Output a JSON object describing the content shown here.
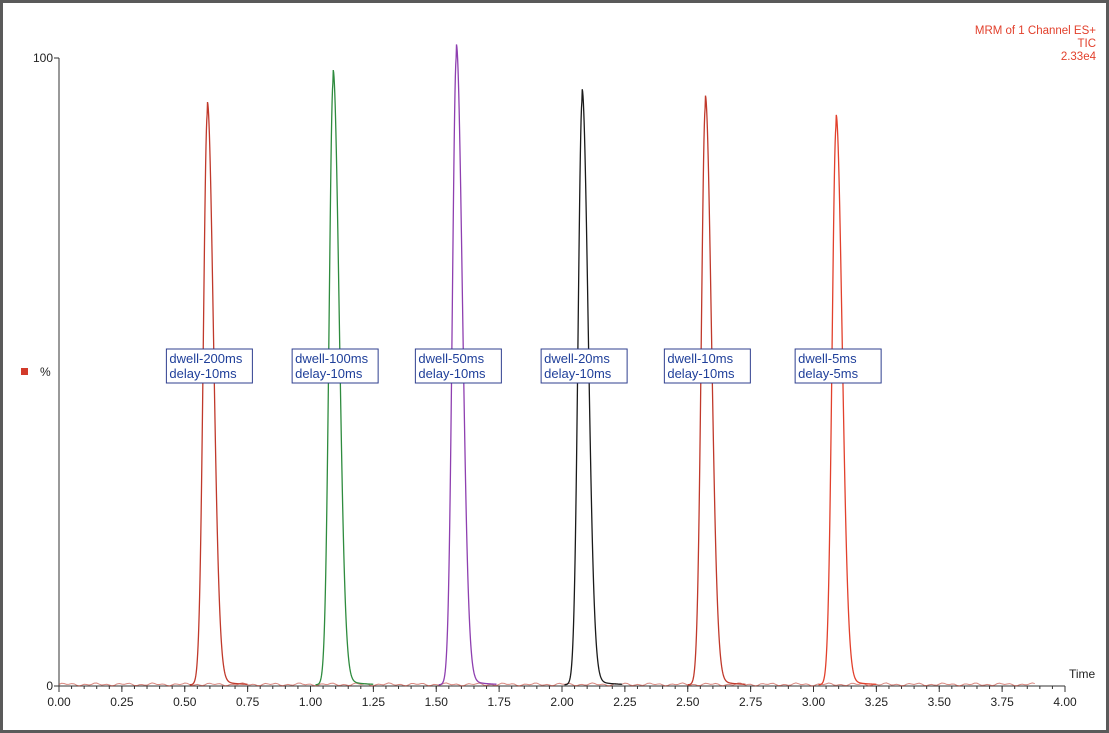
{
  "info": {
    "line1": "MRM of 1 Channel ES+",
    "line2": "TIC",
    "line3": "2.33e4"
  },
  "chart_data": {
    "type": "line",
    "title": "",
    "xlabel": "Time",
    "ylabel": "%",
    "xlim": [
      0.0,
      4.0
    ],
    "ylim": [
      0,
      100
    ],
    "x_ticks": [
      "0.00",
      "0.25",
      "0.50",
      "0.75",
      "1.00",
      "1.25",
      "1.50",
      "1.75",
      "2.00",
      "2.25",
      "2.50",
      "2.75",
      "3.00",
      "3.25",
      "3.50",
      "3.75",
      "4.00"
    ],
    "y_ticks": [
      "0",
      "100"
    ],
    "grid": false,
    "series": [
      {
        "color": "#c0392b",
        "peak_time": 0.59,
        "peak_intensity": 91,
        "label": [
          "dwell-200ms",
          "delay-10ms"
        ]
      },
      {
        "color": "#2e8b3e",
        "peak_time": 1.09,
        "peak_intensity": 96,
        "label": [
          "dwell-100ms",
          "delay-10ms"
        ]
      },
      {
        "color": "#8e3fb0",
        "peak_time": 1.58,
        "peak_intensity": 100,
        "label": [
          "dwell-50ms",
          "delay-10ms"
        ]
      },
      {
        "color": "#1a1a1a",
        "peak_time": 2.08,
        "peak_intensity": 93,
        "label": [
          "dwell-20ms",
          "delay-10ms"
        ]
      },
      {
        "color": "#c0392b",
        "peak_time": 2.57,
        "peak_intensity": 92,
        "label": [
          "dwell-10ms",
          "delay-10ms"
        ]
      },
      {
        "color": "#e2402c",
        "peak_time": 3.09,
        "peak_intensity": 89,
        "label": [
          "dwell-5ms",
          "delay-5ms"
        ]
      }
    ],
    "y_marker_color": "#d23a2a"
  }
}
